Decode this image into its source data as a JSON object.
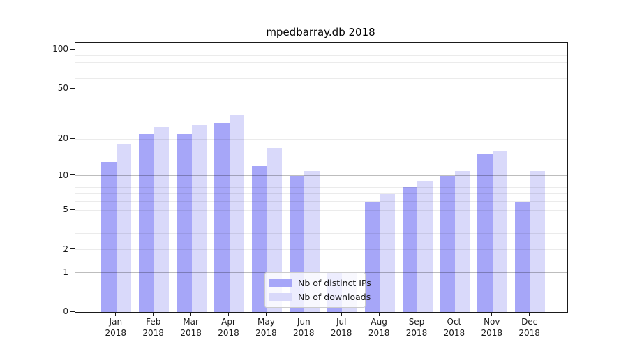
{
  "chart_data": {
    "type": "bar",
    "title": "mpedbarray.db 2018",
    "months": [
      "Jan",
      "Feb",
      "Mar",
      "Apr",
      "May",
      "Jun",
      "Jul",
      "Aug",
      "Sep",
      "Oct",
      "Nov",
      "Dec"
    ],
    "year": "2018",
    "series": [
      {
        "name": "Nb of distinct IPs",
        "color": "#a6a6f8",
        "values": [
          13,
          22,
          22,
          27,
          12,
          10,
          1,
          6,
          8,
          10,
          15,
          6
        ]
      },
      {
        "name": "Nb of downloads",
        "color": "#d9d9fa",
        "values": [
          18,
          25,
          26,
          31,
          17,
          11,
          1,
          7,
          9,
          11,
          16,
          11
        ]
      }
    ],
    "xlabel": "",
    "ylabel": "",
    "yaxis": {
      "scale": "log1p",
      "ylim": [
        0,
        113.8
      ],
      "labeled_ticks": [
        0,
        1,
        2,
        5,
        10,
        20,
        50,
        100
      ],
      "major_gridlines": [
        1,
        10,
        100
      ],
      "minor_gridlines": [
        2,
        3,
        4,
        5,
        6,
        7,
        8,
        9,
        20,
        30,
        40,
        50,
        60,
        70,
        80,
        90
      ]
    },
    "grid": true,
    "legend_position": "lower center",
    "colors": {
      "background": "#ffffff",
      "axis": "#1a1a1a",
      "grid_major": "rgba(0,0,0,0.26)",
      "grid_minor": "rgba(0,0,0,0.08)"
    }
  }
}
